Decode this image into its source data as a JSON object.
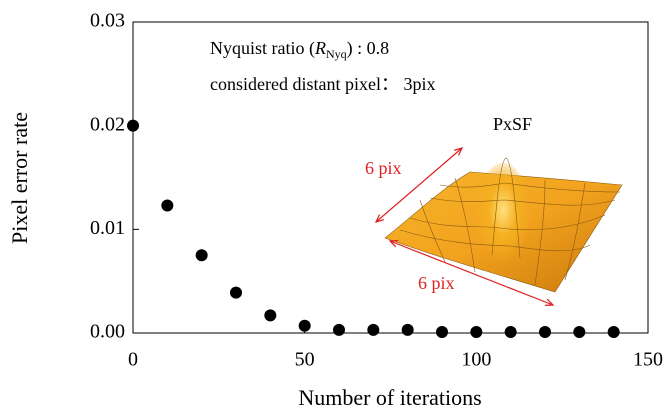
{
  "chart_data": {
    "type": "scatter",
    "x_label": "Number of iterations",
    "y_label": "Pixel error rate",
    "x": [
      0,
      10,
      20,
      30,
      40,
      50,
      60,
      70,
      80,
      90,
      100,
      110,
      120,
      130,
      140
    ],
    "values": [
      0.02,
      0.0123,
      0.0075,
      0.0039,
      0.0017,
      0.0007,
      0.0003,
      0.0003,
      0.0003,
      0.0001,
      0.0001,
      0.0001,
      0.0001,
      0.0001,
      0.0001
    ],
    "color": "#000000",
    "xlim": [
      0,
      150
    ],
    "xticks": [
      0,
      50,
      100,
      150
    ],
    "ylim": [
      0,
      0.03
    ],
    "yticks": [
      {
        "value": 0,
        "label": "0.00"
      },
      {
        "value": 0.01,
        "label": "0.01"
      },
      {
        "value": 0.02,
        "label": "0.02"
      },
      {
        "value": 0.03,
        "label": "0.03"
      }
    ],
    "annotations": {
      "nyquist": [
        "Nyquist ratio (",
        "R",
        "Nyq",
        ") : 0.8"
      ],
      "distant": "considered distant pixel： 3pix",
      "pxsf": "PxSF",
      "size_a": "6 pix",
      "size_b": "6 pix"
    }
  }
}
